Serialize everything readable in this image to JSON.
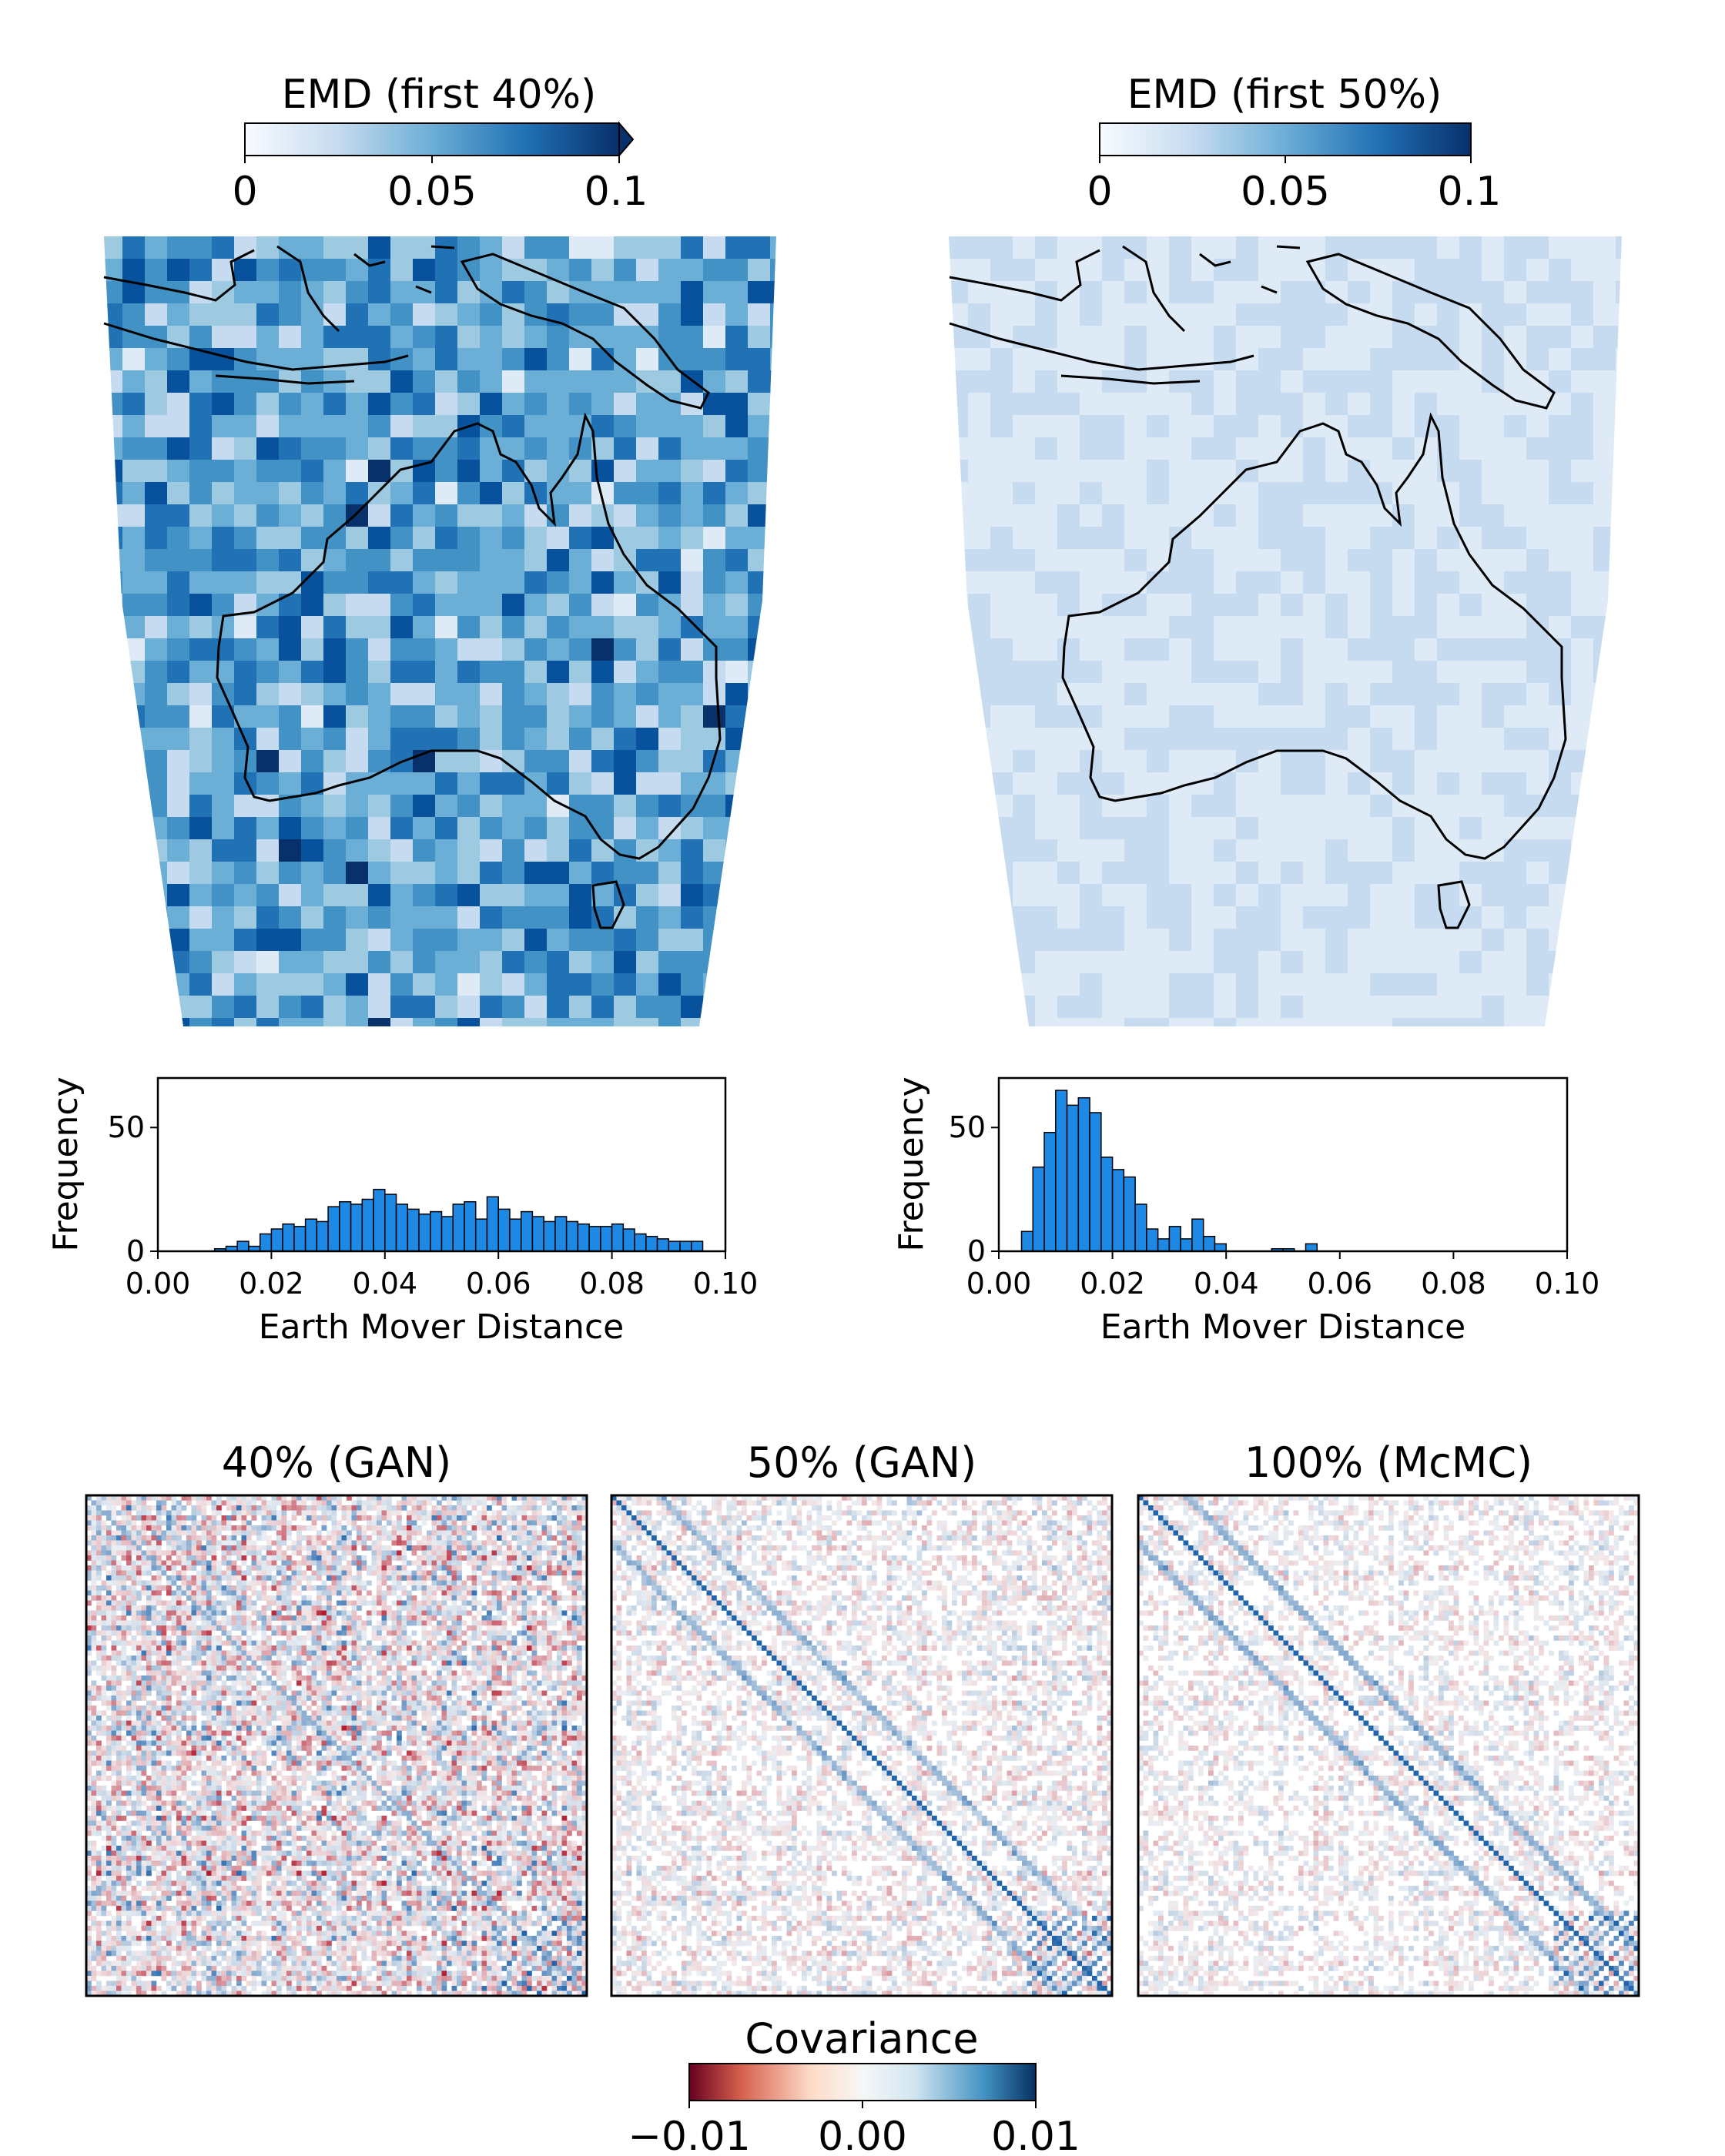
{
  "emd_maps": [
    {
      "colorbar_label": "EMD (first 40%)",
      "colorbar_ticks": [
        "0",
        "0.05",
        "0.1"
      ],
      "colorbar_range": [
        0,
        0.1
      ],
      "colorbar_extend": "max",
      "typical_level": 0.055,
      "spread": 0.028
    },
    {
      "colorbar_label": "EMD (first 50%)",
      "colorbar_ticks": [
        "0",
        "0.05",
        "0.1"
      ],
      "colorbar_range": [
        0,
        0.1
      ],
      "colorbar_extend": "neither",
      "typical_level": 0.018,
      "spread": 0.007
    }
  ],
  "chart_data": [
    {
      "type": "bar",
      "subtype": "histogram",
      "xlabel": "Earth Mover Distance",
      "ylabel": "Frequency",
      "xlim": [
        0,
        0.1
      ],
      "ylim": [
        0,
        70
      ],
      "xticks": [
        "0.00",
        "0.02",
        "0.04",
        "0.06",
        "0.08",
        "0.10"
      ],
      "yticks": [
        "0",
        "50"
      ],
      "bin_width": 0.002,
      "bin_start": 0.01,
      "color": "#1e88e5",
      "values": [
        1,
        2,
        4,
        2,
        7,
        9,
        11,
        10,
        13,
        12,
        18,
        20,
        19,
        21,
        25,
        23,
        19,
        17,
        15,
        16,
        14,
        19,
        20,
        13,
        22,
        17,
        13,
        16,
        14,
        12,
        14,
        12,
        11,
        10,
        10,
        11,
        9,
        7,
        6,
        5,
        4,
        4,
        4
      ]
    },
    {
      "type": "bar",
      "subtype": "histogram",
      "xlabel": "Earth Mover Distance",
      "ylabel": "Frequency",
      "xlim": [
        0,
        0.1
      ],
      "ylim": [
        0,
        70
      ],
      "xticks": [
        "0.00",
        "0.02",
        "0.04",
        "0.06",
        "0.08",
        "0.10"
      ],
      "yticks": [
        "0",
        "50"
      ],
      "bin_width": 0.002,
      "bin_start": 0.004,
      "color": "#1e88e5",
      "values": [
        8,
        34,
        48,
        65,
        59,
        62,
        56,
        38,
        33,
        30,
        19,
        9,
        5,
        10,
        5,
        13,
        6,
        3,
        0,
        0,
        0,
        0,
        1,
        1,
        0,
        3,
        0
      ]
    },
    {
      "type": "heatmap",
      "title": "40% (GAN)",
      "diagonal_strength": 0.3,
      "noise": 0.85,
      "bottom_right_block": 0.6
    },
    {
      "type": "heatmap",
      "title": "50% (GAN)",
      "diagonal_strength": 0.8,
      "noise": 0.35,
      "bottom_right_block": 0.75
    },
    {
      "type": "heatmap",
      "title": "100% (McMC)",
      "diagonal_strength": 0.9,
      "noise": 0.3,
      "bottom_right_block": 0.8
    }
  ],
  "covariance_colorbar": {
    "label": "Covariance",
    "ticks": [
      "−0.01",
      "0.00",
      "0.01"
    ],
    "range": [
      -0.01,
      0.01
    ],
    "colormap": "RdBu"
  }
}
